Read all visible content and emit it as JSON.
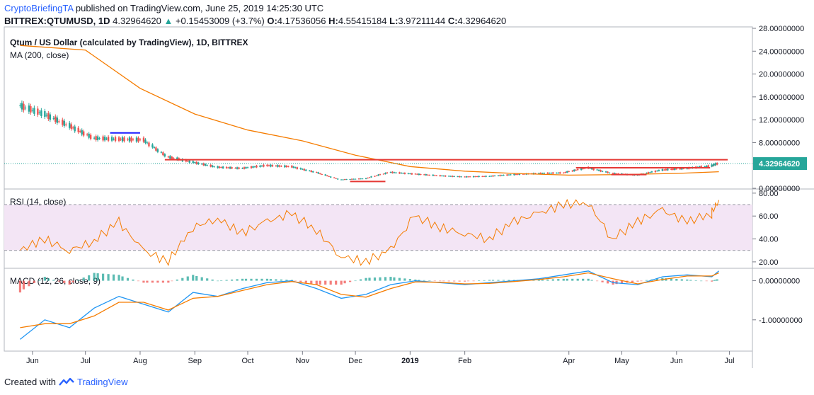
{
  "header": {
    "author": "CryptoBriefingTA",
    "published": " published on TradingView.com, June 25, 2019 14:25:30 UTC",
    "symbol": "BITTREX:QTUMUSD, 1D",
    "last": "4.32964620",
    "change_arrow": "▲",
    "change": "+0.15453009 (+3.7%)",
    "o_label": "O:",
    "o": "4.17536056",
    "h_label": "H:",
    "h": "4.55415184",
    "l_label": "L:",
    "l": "3.97211144",
    "c_label": "C:",
    "c": "4.32964620"
  },
  "footer": {
    "created_with": "Created with",
    "brand": "TradingView",
    "logo_icon": "tradingview-logo-icon"
  },
  "colors": {
    "up": "#26a69a",
    "down": "#ef5350",
    "ma": "#f57c00",
    "rsi": "#f57c00",
    "rsi_band": "#f3e5f5",
    "macd": "#2196f3",
    "signal": "#f57c00",
    "resistance": "#e53935",
    "support_blue": "#1a1aff",
    "price_tag": "#26a69a"
  },
  "chart_data": [
    {
      "type": "line",
      "title": "Qtum / US Dollar (calculated by TradingView), 1D, BITTREX",
      "indicator": "MA (200, close)",
      "x_axis_labels": [
        "Jun",
        "Jul",
        "Aug",
        "Sep",
        "Oct",
        "Nov",
        "Dec",
        "2019",
        "Feb",
        "Apr",
        "May",
        "Jun",
        "Jul"
      ],
      "y_tick_labels": [
        "28.00000000",
        "24.00000000",
        "20.00000000",
        "16.00000000",
        "12.00000000",
        "8.00000000",
        "0.00000000"
      ],
      "ylim": [
        0,
        28
      ],
      "last_price": "4.32964620",
      "series": [
        {
          "name": "price",
          "x": [
            "2018-05-25",
            "2018-06-08",
            "2018-06-22",
            "2018-07-06",
            "2018-07-20",
            "2018-08-03",
            "2018-08-17",
            "2018-08-31",
            "2018-09-14",
            "2018-09-28",
            "2018-10-12",
            "2018-10-26",
            "2018-11-09",
            "2018-11-23",
            "2018-12-07",
            "2018-12-21",
            "2019-01-04",
            "2019-01-18",
            "2019-02-01",
            "2019-02-15",
            "2019-03-01",
            "2019-03-15",
            "2019-03-29",
            "2019-04-12",
            "2019-04-26",
            "2019-05-10",
            "2019-05-24",
            "2019-06-07",
            "2019-06-21",
            "2019-06-25"
          ],
          "values": [
            14.5,
            13.0,
            11.0,
            8.8,
            8.6,
            8.5,
            5.5,
            4.6,
            3.7,
            3.5,
            4.0,
            3.8,
            2.8,
            1.5,
            1.7,
            2.8,
            2.5,
            2.2,
            2.0,
            2.1,
            2.4,
            2.6,
            2.7,
            3.6,
            2.6,
            2.3,
            3.2,
            3.5,
            3.9,
            4.33
          ]
        },
        {
          "name": "MA (200, close)",
          "x": [
            "2018-05-25",
            "2018-07-01",
            "2018-08-01",
            "2018-09-01",
            "2018-10-01",
            "2018-11-01",
            "2018-12-01",
            "2019-01-01",
            "2019-02-01",
            "2019-03-01",
            "2019-04-01",
            "2019-05-01",
            "2019-06-01",
            "2019-06-25"
          ],
          "values": [
            25.0,
            24.2,
            17.5,
            13.0,
            10.2,
            8.3,
            5.8,
            3.8,
            3.0,
            2.6,
            2.3,
            2.4,
            2.6,
            2.9
          ]
        }
      ],
      "annotations": [
        {
          "kind": "resistance",
          "value": 5.0,
          "x": [
            "2018-08-15",
            "2019-06-30"
          ]
        },
        {
          "kind": "resistance",
          "value": 3.6,
          "x": [
            "2019-04-05",
            "2019-06-20"
          ]
        },
        {
          "kind": "support",
          "value": 1.2,
          "x": [
            "2018-11-28",
            "2018-12-18"
          ]
        },
        {
          "kind": "support",
          "value": 2.4,
          "x": [
            "2019-04-25",
            "2019-05-15"
          ]
        },
        {
          "kind": "level",
          "value": 9.7,
          "x": [
            "2018-07-15",
            "2018-08-01"
          ]
        }
      ]
    },
    {
      "type": "line",
      "indicator": "RSI (14, close)",
      "y_tick_labels": [
        "80.00",
        "60.00",
        "40.00",
        "20.00"
      ],
      "ylim": [
        15,
        83
      ],
      "band": [
        30,
        70
      ],
      "series": [
        {
          "name": "RSI",
          "x": [
            "2018-05-25",
            "2018-06-08",
            "2018-06-22",
            "2018-07-06",
            "2018-07-20",
            "2018-08-03",
            "2018-08-17",
            "2018-08-31",
            "2018-09-14",
            "2018-09-28",
            "2018-10-12",
            "2018-10-26",
            "2018-11-09",
            "2018-11-23",
            "2018-12-07",
            "2018-12-21",
            "2019-01-04",
            "2019-01-18",
            "2019-02-01",
            "2019-02-15",
            "2019-03-01",
            "2019-03-15",
            "2019-03-29",
            "2019-04-12",
            "2019-04-26",
            "2019-05-10",
            "2019-05-24",
            "2019-06-07",
            "2019-06-21",
            "2019-06-25"
          ],
          "values": [
            30,
            40,
            30,
            38,
            55,
            30,
            20,
            50,
            58,
            45,
            55,
            62,
            48,
            25,
            20,
            30,
            60,
            50,
            45,
            40,
            55,
            62,
            70,
            72,
            40,
            55,
            65,
            55,
            62,
            74
          ]
        }
      ]
    },
    {
      "type": "line",
      "indicator": "MACD (12, 26, close, 9)",
      "y_tick_labels": [
        "0.00000000",
        "-1.00000000"
      ],
      "ylim": [
        -1.8,
        0.3
      ],
      "series": [
        {
          "name": "MACD",
          "x": [
            "2018-05-25",
            "2018-06-08",
            "2018-06-22",
            "2018-07-06",
            "2018-07-20",
            "2018-08-03",
            "2018-08-17",
            "2018-08-31",
            "2018-09-14",
            "2018-09-28",
            "2018-10-12",
            "2018-10-26",
            "2018-11-09",
            "2018-11-23",
            "2018-12-07",
            "2018-12-21",
            "2019-01-04",
            "2019-01-18",
            "2019-02-01",
            "2019-02-15",
            "2019-03-01",
            "2019-03-15",
            "2019-03-29",
            "2019-04-12",
            "2019-04-26",
            "2019-05-10",
            "2019-05-24",
            "2019-06-07",
            "2019-06-21",
            "2019-06-25"
          ],
          "values": [
            -1.5,
            -1.0,
            -1.2,
            -0.7,
            -0.4,
            -0.6,
            -0.8,
            -0.3,
            -0.4,
            -0.2,
            -0.05,
            0.0,
            -0.2,
            -0.45,
            -0.35,
            -0.1,
            0.0,
            -0.05,
            -0.1,
            -0.05,
            0.0,
            0.05,
            0.15,
            0.25,
            -0.05,
            -0.1,
            0.1,
            0.15,
            0.1,
            0.25
          ]
        },
        {
          "name": "Signal",
          "x": [
            "2018-05-25",
            "2018-06-08",
            "2018-06-22",
            "2018-07-06",
            "2018-07-20",
            "2018-08-03",
            "2018-08-17",
            "2018-08-31",
            "2018-09-14",
            "2018-09-28",
            "2018-10-12",
            "2018-10-26",
            "2018-11-09",
            "2018-11-23",
            "2018-12-07",
            "2018-12-21",
            "2019-01-04",
            "2019-01-18",
            "2019-02-01",
            "2019-02-15",
            "2019-03-01",
            "2019-03-15",
            "2019-03-29",
            "2019-04-12",
            "2019-04-26",
            "2019-05-10",
            "2019-05-24",
            "2019-06-07",
            "2019-06-21",
            "2019-06-25"
          ],
          "values": [
            -1.2,
            -1.1,
            -1.1,
            -0.9,
            -0.55,
            -0.55,
            -0.75,
            -0.45,
            -0.4,
            -0.25,
            -0.1,
            -0.02,
            -0.1,
            -0.35,
            -0.42,
            -0.2,
            -0.03,
            -0.04,
            -0.08,
            -0.07,
            -0.02,
            0.03,
            0.1,
            0.2,
            0.05,
            -0.08,
            0.03,
            0.12,
            0.12,
            0.2
          ]
        },
        {
          "name": "Histogram",
          "x": [
            "2018-05-25",
            "2018-06-08",
            "2018-06-22",
            "2018-07-06",
            "2018-07-20",
            "2018-08-03",
            "2018-08-17",
            "2018-08-31",
            "2018-09-14",
            "2018-09-28",
            "2018-10-12",
            "2018-10-26",
            "2018-11-09",
            "2018-11-23",
            "2018-12-07",
            "2018-12-21",
            "2019-01-04",
            "2019-01-18",
            "2019-02-01",
            "2019-02-15",
            "2019-03-01",
            "2019-03-15",
            "2019-03-29",
            "2019-04-12",
            "2019-04-26",
            "2019-05-10",
            "2019-05-24",
            "2019-06-07",
            "2019-06-21",
            "2019-06-25"
          ],
          "values": [
            -0.3,
            0.1,
            -0.1,
            0.2,
            0.15,
            -0.05,
            -0.05,
            0.15,
            0.0,
            0.05,
            0.05,
            0.02,
            -0.1,
            -0.1,
            0.07,
            0.1,
            0.03,
            -0.01,
            -0.02,
            0.02,
            0.02,
            0.02,
            0.05,
            0.05,
            -0.1,
            -0.02,
            0.07,
            0.03,
            -0.02,
            0.05
          ]
        }
      ]
    }
  ]
}
